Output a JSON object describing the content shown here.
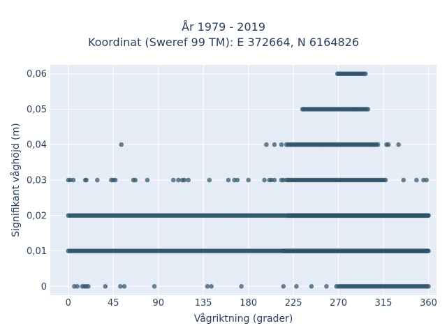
{
  "chart_data": {
    "type": "scatter",
    "title_line1": "År 1979 - 2019",
    "title_line2": "Koordinat (Sweref 99 TM): E 372664, N 6164826",
    "xlabel": "Vågriktning (grader)",
    "ylabel": "Signifikant våghöjd (m)",
    "xlim": [
      -18,
      368
    ],
    "ylim": [
      -0.0025,
      0.0625
    ],
    "xticks": [
      0,
      45,
      90,
      135,
      180,
      225,
      270,
      315,
      360
    ],
    "xtick_labels": [
      "0",
      "45",
      "90",
      "135",
      "180",
      "225",
      "270",
      "315",
      "360"
    ],
    "yticks": [
      0,
      0.01,
      0.02,
      0.03,
      0.04,
      0.05,
      0.06
    ],
    "ytick_labels": [
      "0",
      "0,01",
      "0,02",
      "0,03",
      "0,04",
      "0,05",
      "0,06"
    ],
    "grid": true,
    "colors": {
      "marker": "#2f5269",
      "plot_bg": "#e5ecf6",
      "grid": "#ffffff",
      "text": "#2a3f5f"
    },
    "series": [
      {
        "y": 0,
        "dense": [
          [
            270,
            360
          ]
        ],
        "x": [
          6,
          9,
          14,
          16,
          18,
          20,
          37,
          52,
          56,
          86,
          139,
          143,
          173,
          215,
          228,
          243,
          258,
          268
        ]
      },
      {
        "y": 0.01,
        "dense": [
          [
            0,
            360
          ],
          [
            215,
            360
          ]
        ],
        "x": []
      },
      {
        "y": 0.02,
        "dense": [
          [
            0,
            360
          ],
          [
            220,
            360
          ]
        ],
        "x": []
      },
      {
        "y": 0.03,
        "dense": [
          [
            218,
            318
          ]
        ],
        "x": [
          0,
          2,
          5,
          17,
          18,
          29,
          43,
          45,
          47,
          65,
          67,
          79,
          105,
          110,
          114,
          116,
          120,
          141,
          160,
          166,
          169,
          180,
          196,
          201,
          203,
          206,
          213,
          215,
          335,
          348,
          355,
          358
        ]
      },
      {
        "y": 0.04,
        "dense": [
          [
            218,
            310
          ]
        ],
        "x": [
          53,
          198,
          206,
          213,
          318,
          320,
          330
        ]
      },
      {
        "y": 0.05,
        "dense": [
          [
            235,
            300
          ]
        ],
        "x": [
          234
        ]
      },
      {
        "y": 0.06,
        "dense": [
          [
            270,
            297
          ]
        ],
        "x": [
          269
        ]
      }
    ]
  }
}
